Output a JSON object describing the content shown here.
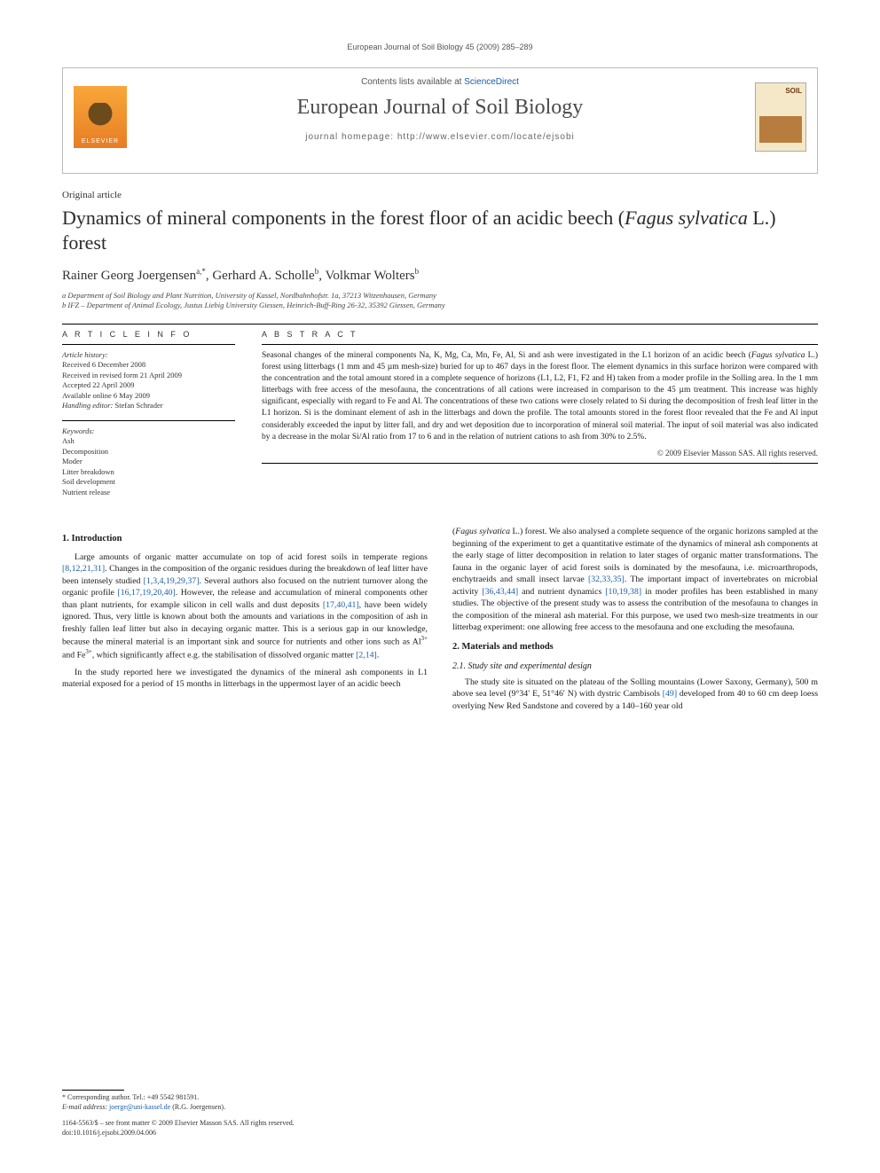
{
  "running_head": "European Journal of Soil Biology 45 (2009) 285–289",
  "contents_box": {
    "contents_prefix": "Contents lists available at ",
    "contents_link": "ScienceDirect",
    "journal": "European Journal of Soil Biology",
    "homepage_prefix": "journal homepage: ",
    "homepage_url": "http://www.elsevier.com/locate/ejsobi",
    "elsevier": "ELSEVIER",
    "cover_text": "SOIL"
  },
  "article_type": "Original article",
  "title_plain": "Dynamics of mineral components in the forest floor of an acidic beech (",
  "title_species": "Fagus sylvatica",
  "title_tail": " L.) forest",
  "authors": {
    "a1": "Rainer Georg Joergensen",
    "a1_sup": "a,*",
    "a2": "Gerhard A. Scholle",
    "a2_sup": "b",
    "a3": "Volkmar Wolters",
    "a3_sup": "b"
  },
  "affils": {
    "a": "a Department of Soil Biology and Plant Nutrition, University of Kassel, Nordbahnhofstr. 1a, 37213 Witzenhausen, Germany",
    "b": "b IFZ – Department of Animal Ecology, Justus Liebig University Giessen, Heinrich-Buff-Ring 26-32, 35392 Giessen, Germany"
  },
  "meta": {
    "heading_info": "A R T I C L E   I N F O",
    "history_label": "Article history:",
    "received": "Received 6 December 2008",
    "revised": "Received in revised form 21 April 2009",
    "accepted": "Accepted 22 April 2009",
    "online": "Available online 6 May 2009",
    "handling_label": "Handling editor:",
    "handling": "Stefan Schrader",
    "keywords_label": "Keywords:",
    "kw1": "Ash",
    "kw2": "Decomposition",
    "kw3": "Moder",
    "kw4": "Litter breakdown",
    "kw5": "Soil development",
    "kw6": "Nutrient release"
  },
  "abstract": {
    "heading": "A B S T R A C T",
    "text_pre": "Seasonal changes of the mineral components Na, K, Mg, Ca, Mn, Fe, Al, Si and ash were investigated in the L1 horizon of an acidic beech (",
    "species": "Fagus sylvatica",
    "text_post": " L.) forest using litterbags (1 mm and 45 µm mesh-size) buried for up to 467 days in the forest floor. The element dynamics in this surface horizon were compared with the concentration and the total amount stored in a complete sequence of horizons (L1, L2, F1, F2 and H) taken from a moder profile in the Solling area. In the 1 mm litterbags with free access of the mesofauna, the concentrations of all cations were increased in comparison to the 45 µm treatment. This increase was highly significant, especially with regard to Fe and Al. The concentrations of these two cations were closely related to Si during the decomposition of fresh leaf litter in the L1 horizon. Si is the dominant element of ash in the litterbags and down the profile. The total amounts stored in the forest floor revealed that the Fe and Al input considerably exceeded the input by litter fall, and dry and wet deposition due to incorporation of mineral soil material. The input of soil material was also indicated by a decrease in the molar Si/Al ratio from 17 to 6 and in the relation of nutrient cations to ash from 30% to 2.5%.",
    "copyright": "© 2009 Elsevier Masson SAS. All rights reserved."
  },
  "body": {
    "h_intro": "1. Introduction",
    "p1_a": "Large amounts of organic matter accumulate on top of acid forest soils in temperate regions ",
    "p1_ref1": "[8,12,21,31]",
    "p1_b": ". Changes in the composition of the organic residues during the breakdown of leaf litter have been intensely studied ",
    "p1_ref2": "[1,3,4,19,29,37]",
    "p1_c": ". Several authors also focused on the nutrient turnover along the organic profile ",
    "p1_ref3": "[16,17,19,20,40]",
    "p1_d": ". However, the release and accumulation of mineral components other than plant nutrients, for example silicon in cell walls and dust deposits ",
    "p1_ref4": "[17,40,41]",
    "p1_e": ", have been widely ignored. Thus, very little is known about both the amounts and variations in the composition of ash in freshly fallen leaf litter but also in decaying organic matter. This is a serious gap in our knowledge, because the mineral material is an important sink and source for nutrients and other ions such as Al",
    "p1_sup1": "3+",
    "p1_f": " and Fe",
    "p1_sup2": "3+",
    "p1_g": ", which significantly affect e.g. the stabilisation of dissolved organic matter ",
    "p1_ref5": "[2,14]",
    "p1_h": ".",
    "p2": "In the study reported here we investigated the dynamics of the mineral ash components in L1 material exposed for a period of 15 months in litterbags in the uppermost layer of an acidic beech",
    "p3_a": "(",
    "p3_species": "Fagus sylvatica",
    "p3_b": " L.) forest. We also analysed a complete sequence of the organic horizons sampled at the beginning of the experiment to get a quantitative estimate of the dynamics of mineral ash components at the early stage of litter decomposition in relation to later stages of organic matter transformations. The fauna in the organic layer of acid forest soils is dominated by the mesofauna, i.e. microarthropods, enchytraeids and small insect larvae ",
    "p3_ref1": "[32,33,35]",
    "p3_c": ". The important impact of invertebrates on microbial activity ",
    "p3_ref2": "[36,43,44]",
    "p3_d": " and nutrient dynamics ",
    "p3_ref3": "[10,19,38]",
    "p3_e": " in moder profiles has been established in many studies. The objective of the present study was to assess the contribution of the mesofauna to changes in the composition of the mineral ash material. For this purpose, we used two mesh-size treatments in our litterbag experiment: one allowing free access to the mesofauna and one excluding the mesofauna.",
    "h_methods": "2. Materials and methods",
    "h_site": "2.1. Study site and experimental design",
    "p4_a": "The study site is situated on the plateau of the Solling mountains (Lower Saxony, Germany), 500 m above sea level (9°34′ E, 51°46′ N) with dystric Cambisols ",
    "p4_ref1": "[49]",
    "p4_b": " developed from 40 to 60 cm deep loess overlying New Red Sandstone and covered by a 140–160 year old"
  },
  "footer": {
    "corr": "* Corresponding author. Tel.: +49 5542 981591.",
    "email_label": "E-mail address: ",
    "email": "joerge@uni-kassel.de",
    "email_tail": " (R.G. Joergensen).",
    "issn": "1164-5563/$ – see front matter © 2009 Elsevier Masson SAS. All rights reserved.",
    "doi": "doi:10.1016/j.ejsobi.2009.04.006"
  },
  "colors": {
    "link": "#1a5dab",
    "text": "#1a1a1a",
    "muted": "#555555"
  }
}
